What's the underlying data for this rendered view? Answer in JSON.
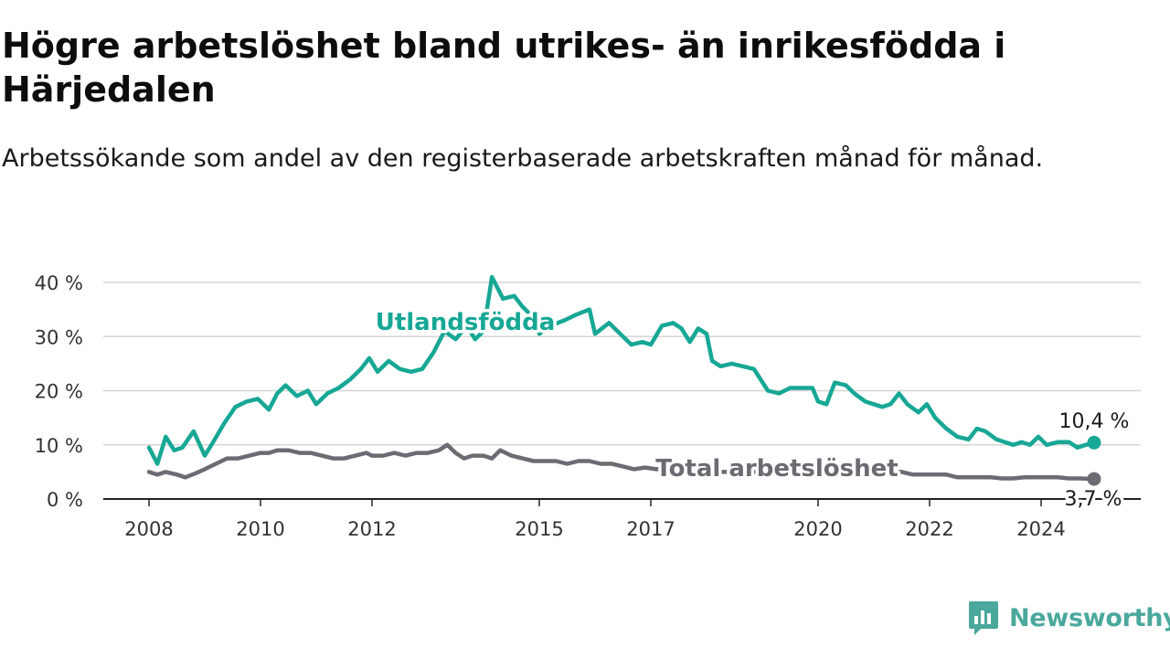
{
  "title": "Högre arbetslöshet bland utrikes- än inrikesfödda i Härjedalen",
  "subtitle": "Arbetssökande som andel av den registerbaserade arbetskraften månad för månad.",
  "brand": "Newsworthy",
  "colors": {
    "foreign": "#17a795",
    "total": "#6e6a72",
    "axis": "#333333",
    "grid": "#d6d6d6"
  },
  "chart_data": {
    "type": "line",
    "ylim": [
      0,
      40
    ],
    "yticks": [
      {
        "v": 0,
        "label": "0 %"
      },
      {
        "v": 10,
        "label": "10 %"
      },
      {
        "v": 20,
        "label": "20 %"
      },
      {
        "v": 30,
        "label": "30 %"
      },
      {
        "v": 40,
        "label": "40 %"
      }
    ],
    "xlim": [
      2008,
      2025
    ],
    "xticks": [
      {
        "v": 2008,
        "label": "2008"
      },
      {
        "v": 2010,
        "label": "2010"
      },
      {
        "v": 2012,
        "label": "2012"
      },
      {
        "v": 2015,
        "label": "2015"
      },
      {
        "v": 2017,
        "label": "2017"
      },
      {
        "v": 2020,
        "label": "2020"
      },
      {
        "v": 2022,
        "label": "2022"
      },
      {
        "v": 2024,
        "label": "2024"
      }
    ],
    "grid": true,
    "series": [
      {
        "name": "Utlandsfödda",
        "end_label": "10,4 %",
        "points": [
          [
            2008.0,
            9.5
          ],
          [
            2008.15,
            6.5
          ],
          [
            2008.3,
            11.5
          ],
          [
            2008.45,
            9.0
          ],
          [
            2008.6,
            9.5
          ],
          [
            2008.8,
            12.5
          ],
          [
            2009.0,
            8.0
          ],
          [
            2009.15,
            10.5
          ],
          [
            2009.35,
            14.0
          ],
          [
            2009.55,
            17.0
          ],
          [
            2009.75,
            18.0
          ],
          [
            2009.95,
            18.5
          ],
          [
            2010.15,
            16.5
          ],
          [
            2010.3,
            19.5
          ],
          [
            2010.45,
            21.0
          ],
          [
            2010.65,
            19.0
          ],
          [
            2010.85,
            20.0
          ],
          [
            2011.0,
            17.5
          ],
          [
            2011.2,
            19.5
          ],
          [
            2011.4,
            20.5
          ],
          [
            2011.6,
            22.0
          ],
          [
            2011.8,
            24.0
          ],
          [
            2011.95,
            26.0
          ],
          [
            2012.1,
            23.5
          ],
          [
            2012.3,
            25.5
          ],
          [
            2012.5,
            24.0
          ],
          [
            2012.7,
            23.5
          ],
          [
            2012.9,
            24.0
          ],
          [
            2013.1,
            27.0
          ],
          [
            2013.3,
            31.0
          ],
          [
            2013.5,
            29.5
          ],
          [
            2013.7,
            32.0
          ],
          [
            2013.85,
            29.5
          ],
          [
            2014.0,
            31.0
          ],
          [
            2014.15,
            41.0
          ],
          [
            2014.35,
            37.0
          ],
          [
            2014.55,
            37.5
          ],
          [
            2014.7,
            35.5
          ],
          [
            2014.85,
            34.0
          ],
          [
            2015.0,
            30.5
          ],
          [
            2015.2,
            32.0
          ],
          [
            2015.45,
            33.0
          ],
          [
            2015.65,
            34.0
          ],
          [
            2015.9,
            35.0
          ],
          [
            2016.0,
            30.5
          ],
          [
            2016.25,
            32.5
          ],
          [
            2016.45,
            30.5
          ],
          [
            2016.65,
            28.5
          ],
          [
            2016.85,
            29.0
          ],
          [
            2017.0,
            28.5
          ],
          [
            2017.2,
            32.0
          ],
          [
            2017.4,
            32.5
          ],
          [
            2017.55,
            31.5
          ],
          [
            2017.7,
            29.0
          ],
          [
            2017.85,
            31.5
          ],
          [
            2018.0,
            30.5
          ],
          [
            2018.1,
            25.5
          ],
          [
            2018.25,
            24.5
          ],
          [
            2018.45,
            25.0
          ],
          [
            2018.65,
            24.5
          ],
          [
            2018.85,
            24.0
          ],
          [
            2019.1,
            20.0
          ],
          [
            2019.3,
            19.5
          ],
          [
            2019.5,
            20.5
          ],
          [
            2019.7,
            20.5
          ],
          [
            2019.9,
            20.5
          ],
          [
            2020.0,
            18.0
          ],
          [
            2020.15,
            17.5
          ],
          [
            2020.3,
            21.5
          ],
          [
            2020.5,
            21.0
          ],
          [
            2020.65,
            19.5
          ],
          [
            2020.85,
            18.0
          ],
          [
            2021.0,
            17.5
          ],
          [
            2021.15,
            17.0
          ],
          [
            2021.3,
            17.5
          ],
          [
            2021.45,
            19.5
          ],
          [
            2021.6,
            17.5
          ],
          [
            2021.8,
            16.0
          ],
          [
            2021.95,
            17.5
          ],
          [
            2022.1,
            15.0
          ],
          [
            2022.3,
            13.0
          ],
          [
            2022.5,
            11.5
          ],
          [
            2022.7,
            11.0
          ],
          [
            2022.85,
            13.0
          ],
          [
            2023.0,
            12.5
          ],
          [
            2023.2,
            11.0
          ],
          [
            2023.35,
            10.5
          ],
          [
            2023.5,
            10.0
          ],
          [
            2023.65,
            10.5
          ],
          [
            2023.8,
            10.0
          ],
          [
            2023.95,
            11.5
          ],
          [
            2024.1,
            10.0
          ],
          [
            2024.3,
            10.5
          ],
          [
            2024.5,
            10.5
          ],
          [
            2024.65,
            9.5
          ],
          [
            2024.8,
            10.0
          ],
          [
            2024.95,
            10.4
          ]
        ]
      },
      {
        "name": "Total arbetslöshet",
        "end_label": "3,7 %",
        "points": [
          [
            2008.0,
            5.0
          ],
          [
            2008.15,
            4.5
          ],
          [
            2008.3,
            5.0
          ],
          [
            2008.5,
            4.5
          ],
          [
            2008.65,
            4.0
          ],
          [
            2008.85,
            4.8
          ],
          [
            2009.0,
            5.5
          ],
          [
            2009.2,
            6.5
          ],
          [
            2009.4,
            7.5
          ],
          [
            2009.6,
            7.5
          ],
          [
            2009.8,
            8.0
          ],
          [
            2010.0,
            8.5
          ],
          [
            2010.15,
            8.5
          ],
          [
            2010.3,
            9.0
          ],
          [
            2010.5,
            9.0
          ],
          [
            2010.7,
            8.5
          ],
          [
            2010.9,
            8.5
          ],
          [
            2011.1,
            8.0
          ],
          [
            2011.3,
            7.5
          ],
          [
            2011.5,
            7.5
          ],
          [
            2011.7,
            8.0
          ],
          [
            2011.9,
            8.5
          ],
          [
            2012.0,
            8.0
          ],
          [
            2012.2,
            8.0
          ],
          [
            2012.4,
            8.5
          ],
          [
            2012.6,
            8.0
          ],
          [
            2012.8,
            8.5
          ],
          [
            2013.0,
            8.5
          ],
          [
            2013.2,
            9.0
          ],
          [
            2013.35,
            10.0
          ],
          [
            2013.5,
            8.5
          ],
          [
            2013.65,
            7.5
          ],
          [
            2013.8,
            8.0
          ],
          [
            2014.0,
            8.0
          ],
          [
            2014.15,
            7.5
          ],
          [
            2014.3,
            9.0
          ],
          [
            2014.5,
            8.0
          ],
          [
            2014.7,
            7.5
          ],
          [
            2014.9,
            7.0
          ],
          [
            2015.1,
            7.0
          ],
          [
            2015.3,
            7.0
          ],
          [
            2015.5,
            6.5
          ],
          [
            2015.7,
            7.0
          ],
          [
            2015.9,
            7.0
          ],
          [
            2016.1,
            6.5
          ],
          [
            2016.3,
            6.5
          ],
          [
            2016.5,
            6.0
          ],
          [
            2016.7,
            5.5
          ],
          [
            2016.9,
            5.8
          ],
          [
            2017.1,
            5.5
          ],
          [
            2017.3,
            5.5
          ],
          [
            2017.5,
            5.5
          ],
          [
            2017.7,
            5.5
          ],
          [
            2017.9,
            5.5
          ],
          [
            2018.1,
            5.0
          ],
          [
            2018.3,
            5.0
          ],
          [
            2018.5,
            5.0
          ],
          [
            2018.7,
            5.0
          ],
          [
            2018.9,
            5.0
          ],
          [
            2019.1,
            5.0
          ],
          [
            2019.3,
            5.0
          ],
          [
            2019.5,
            5.0
          ],
          [
            2019.7,
            5.0
          ],
          [
            2019.9,
            5.0
          ],
          [
            2020.1,
            5.0
          ],
          [
            2020.3,
            5.5
          ],
          [
            2020.5,
            5.5
          ],
          [
            2020.7,
            5.5
          ],
          [
            2020.9,
            5.0
          ],
          [
            2021.1,
            5.0
          ],
          [
            2021.3,
            5.0
          ],
          [
            2021.5,
            5.0
          ],
          [
            2021.7,
            4.5
          ],
          [
            2021.9,
            4.5
          ],
          [
            2022.1,
            4.5
          ],
          [
            2022.3,
            4.5
          ],
          [
            2022.5,
            4.0
          ],
          [
            2022.7,
            4.0
          ],
          [
            2022.9,
            4.0
          ],
          [
            2023.1,
            4.0
          ],
          [
            2023.3,
            3.8
          ],
          [
            2023.5,
            3.8
          ],
          [
            2023.7,
            4.0
          ],
          [
            2023.9,
            4.0
          ],
          [
            2024.1,
            4.0
          ],
          [
            2024.3,
            4.0
          ],
          [
            2024.5,
            3.8
          ],
          [
            2024.7,
            3.8
          ],
          [
            2024.95,
            3.7
          ]
        ]
      }
    ]
  }
}
